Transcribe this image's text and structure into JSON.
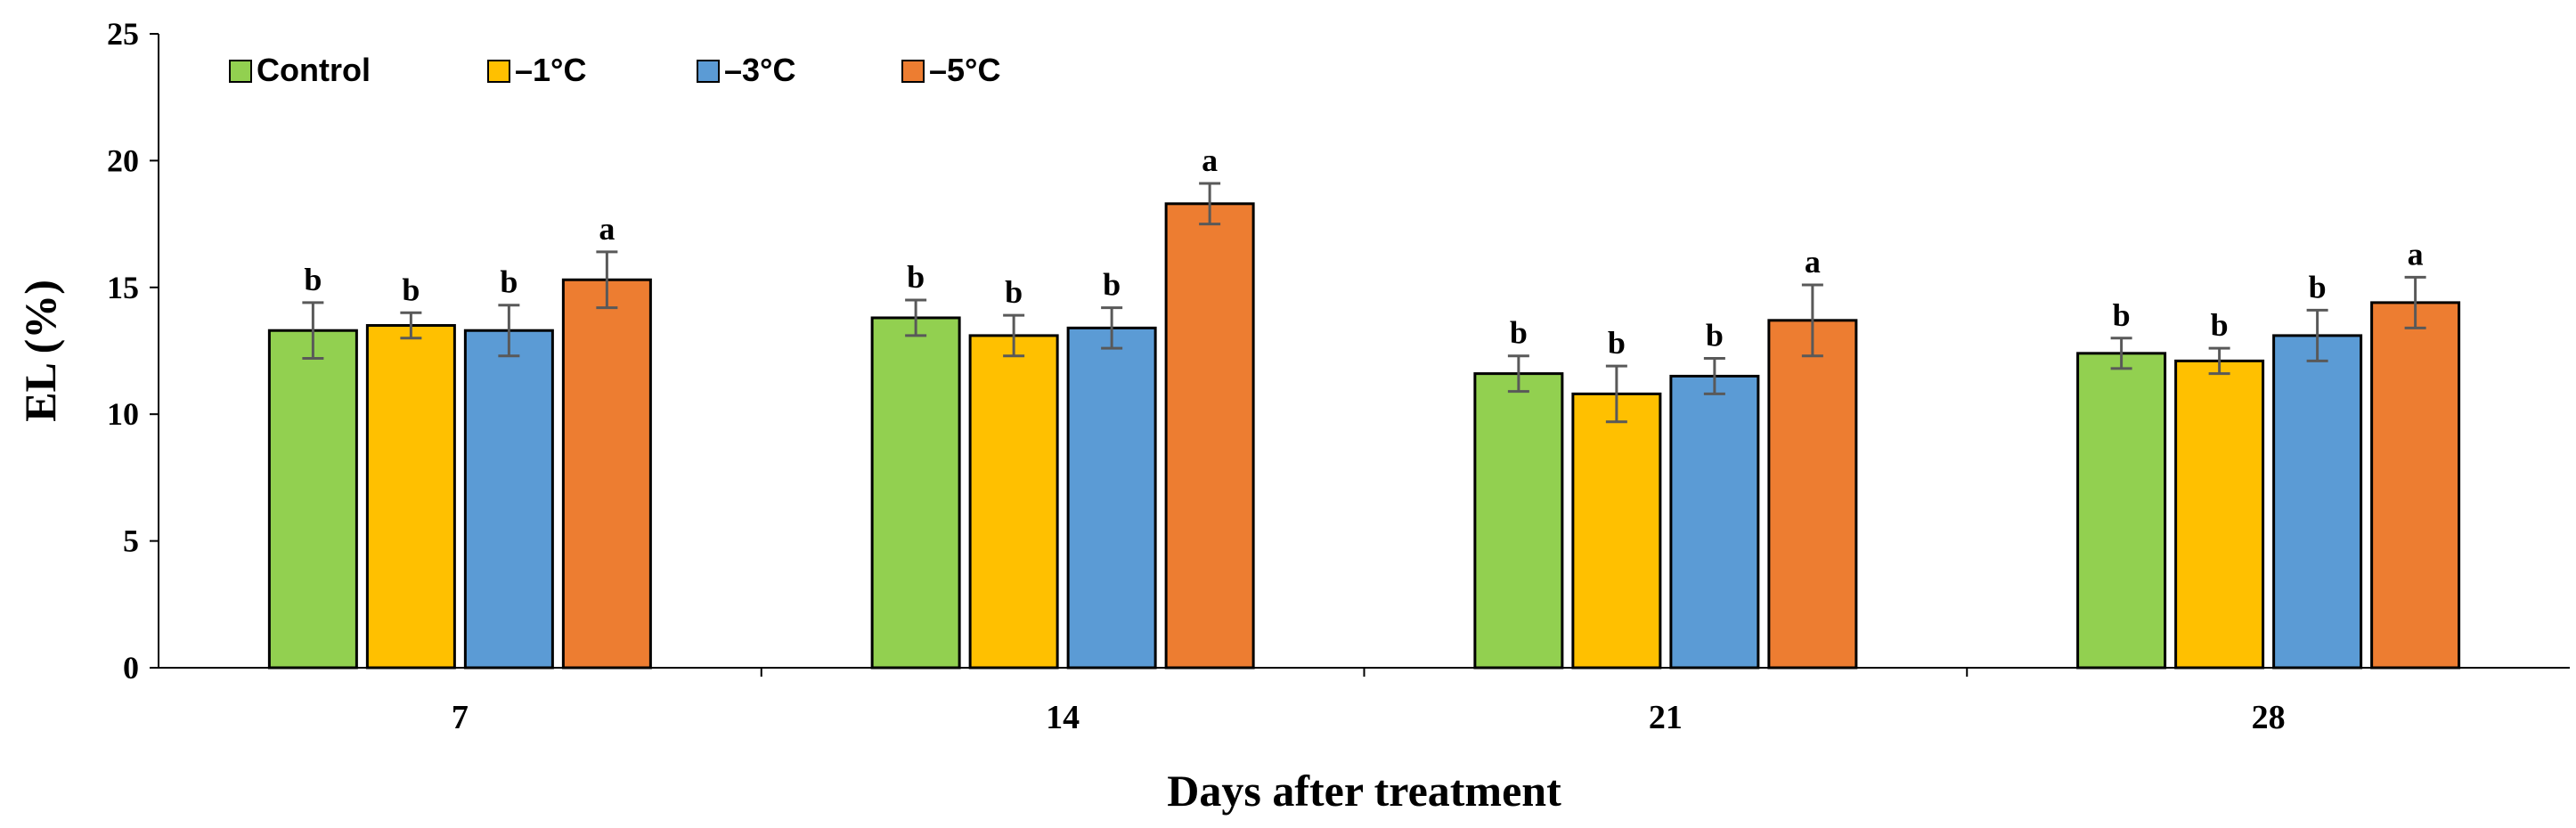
{
  "chart_data": {
    "type": "bar",
    "title": "",
    "xlabel": "Days after treatment",
    "ylabel": "EL (%)",
    "ylim": [
      0,
      25
    ],
    "yticks": [
      "0",
      "5",
      "10",
      "15",
      "20",
      "25"
    ],
    "categories": [
      "7",
      "14",
      "21",
      "28"
    ],
    "legend_position": "top-left",
    "series": [
      {
        "name": "Control",
        "color": "#92D050",
        "values": [
          13.3,
          13.8,
          11.6,
          12.4
        ],
        "errors": [
          1.1,
          0.7,
          0.7,
          0.6
        ],
        "letters": [
          "b",
          "b",
          "b",
          "b"
        ]
      },
      {
        "name": "–1°C",
        "color": "#FFC000",
        "values": [
          13.5,
          13.1,
          10.8,
          12.1
        ],
        "errors": [
          0.5,
          0.8,
          1.1,
          0.5
        ],
        "letters": [
          "b",
          "b",
          "b",
          "b"
        ]
      },
      {
        "name": "–3°C",
        "color": "#5B9BD5",
        "values": [
          13.3,
          13.4,
          11.5,
          13.1
        ],
        "errors": [
          1.0,
          0.8,
          0.7,
          1.0
        ],
        "letters": [
          "b",
          "b",
          "b",
          "b"
        ]
      },
      {
        "name": "–5°C",
        "color": "#ED7D31",
        "values": [
          15.3,
          18.3,
          13.7,
          14.4
        ],
        "errors": [
          1.1,
          0.8,
          1.4,
          1.0
        ],
        "letters": [
          "a",
          "a",
          "a",
          "a"
        ]
      }
    ]
  }
}
